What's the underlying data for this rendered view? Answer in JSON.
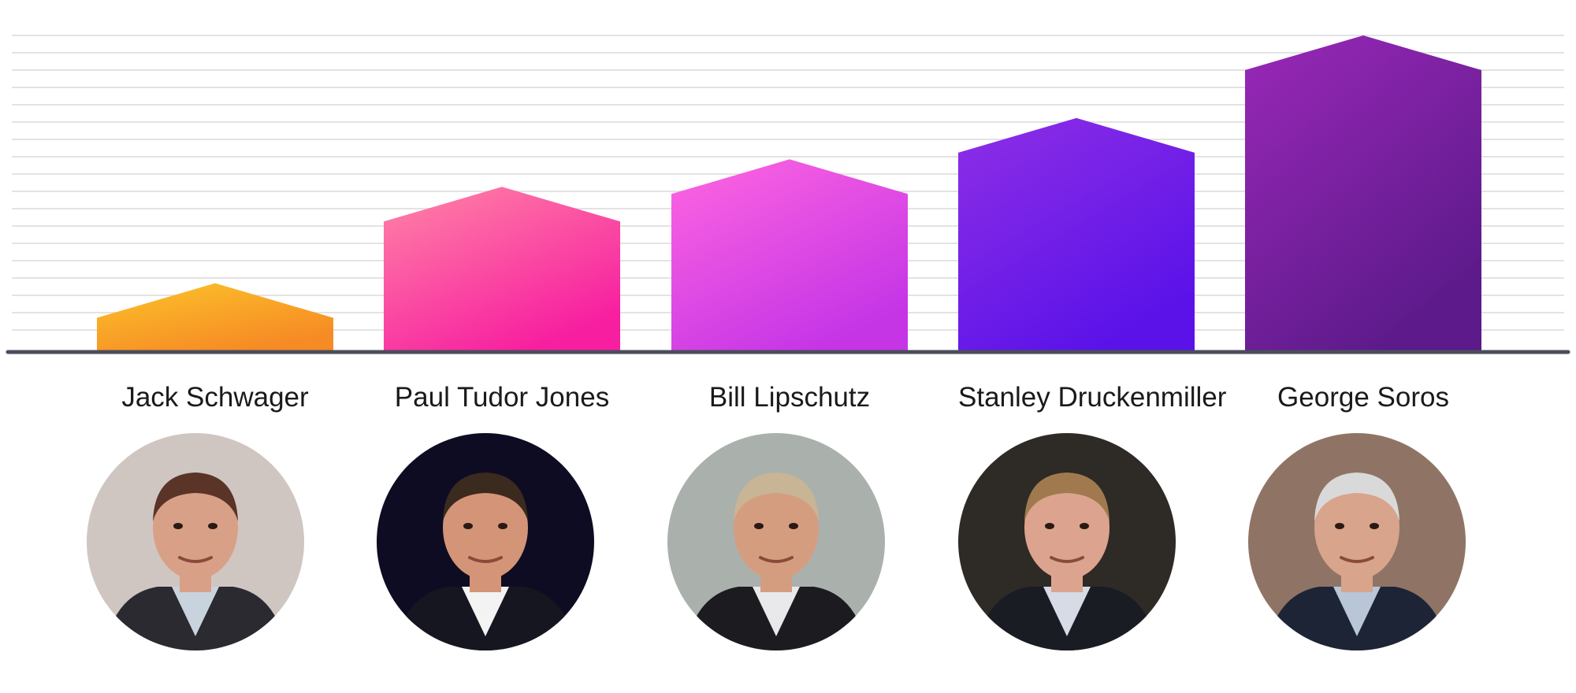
{
  "chart_data": {
    "type": "bar",
    "categories": [
      "Jack Schwager",
      "Paul Tudor Jones",
      "Bill Lipschutz",
      "Stanley Druckenmiller",
      "George Soros"
    ],
    "values": [
      5,
      12,
      14,
      17,
      23
    ],
    "ylim": [
      0,
      23
    ],
    "grid": true,
    "legend": "none",
    "bar_shape": "house-pentagon",
    "bar_colors": [
      [
        "#fcc42a",
        "#f68a25"
      ],
      [
        "#ff85a6",
        "#f71fa0"
      ],
      [
        "#ff66e0",
        "#c535e6"
      ],
      [
        "#8e2fe6",
        "#5a12e8"
      ],
      [
        "#9a28b8",
        "#5c1a8a"
      ]
    ],
    "axis_color": "#4a4d5c",
    "grid_color": "#e3e3e3"
  },
  "portraits": [
    {
      "name": "Jack Schwager",
      "icon": "person-photo-icon",
      "bg": "#cfc6c2",
      "jacket": "#2a2a30",
      "shirt": "#c9d3de",
      "hair": "#5a3426",
      "skin": "#d9a088"
    },
    {
      "name": "Paul Tudor Jones",
      "icon": "person-photo-icon",
      "bg": "#0e0c22",
      "jacket": "#161620",
      "shirt": "#f3f3f3",
      "hair": "#3b2a1e",
      "skin": "#d49478"
    },
    {
      "name": "Bill Lipschutz",
      "icon": "person-photo-icon",
      "bg": "#aab0ac",
      "jacket": "#1c1c20",
      "shirt": "#e9e9ec",
      "hair": "#c8b596",
      "skin": "#d59d80"
    },
    {
      "name": "Stanley Druckenmiller",
      "icon": "person-photo-icon",
      "bg": "#2e2a25",
      "jacket": "#1a1c24",
      "shirt": "#d6dbe6",
      "hair": "#a07a4e",
      "skin": "#dca48e"
    },
    {
      "name": "George Soros",
      "icon": "person-photo-icon",
      "bg": "#8f7466",
      "jacket": "#1d2436",
      "shirt": "#b9c6d8",
      "hair": "#d9d9d9",
      "skin": "#d8a48c"
    }
  ]
}
